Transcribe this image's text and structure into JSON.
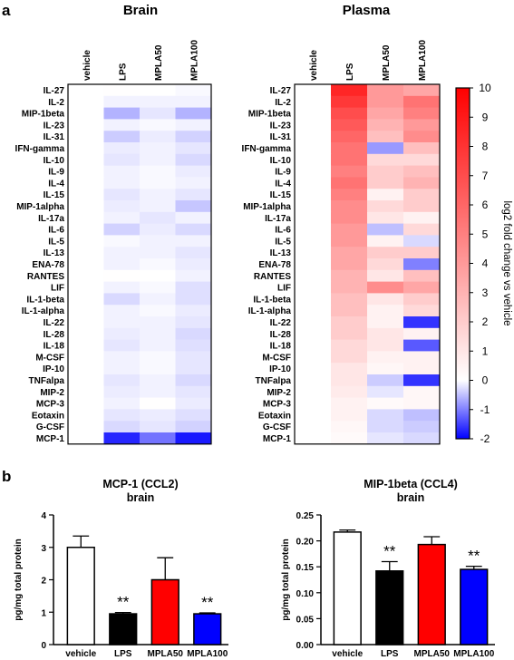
{
  "panel_a": {
    "label": "a"
  },
  "panel_b": {
    "label": "b"
  },
  "chart_data": [
    {
      "type": "heatmap",
      "title": "Brain",
      "columns": [
        "vehicle",
        "LPS",
        "MPLA50",
        "MPLA100"
      ],
      "rows": [
        "IL-27",
        "IL-2",
        "MIP-1beta",
        "IL-23",
        "IL-31",
        "IFN-gamma",
        "IL-10",
        "IL-9",
        "IL-4",
        "IL-15",
        "MIP-1alpha",
        "IL-17a",
        "IL-6",
        "IL-5",
        "IL-13",
        "ENA-78",
        "RANTES",
        "LIF",
        "IL-1-beta",
        "IL-1-alpha",
        "IL-22",
        "IL-28",
        "IL-18",
        "M-CSF",
        "IP-10",
        "TNFalpa",
        "MIP-2",
        "MCP-3",
        "Eotaxin",
        "G-CSF",
        "MCP-1"
      ],
      "values": [
        [
          0,
          0.05,
          0.0,
          -0.05
        ],
        [
          0,
          -0.1,
          -0.1,
          -0.1
        ],
        [
          0,
          -0.6,
          -0.2,
          -0.6
        ],
        [
          0,
          -0.1,
          -0.05,
          -0.1
        ],
        [
          0,
          -0.4,
          -0.15,
          -0.35
        ],
        [
          0,
          -0.15,
          -0.1,
          -0.2
        ],
        [
          0,
          -0.2,
          -0.1,
          -0.3
        ],
        [
          0,
          -0.1,
          -0.05,
          -0.15
        ],
        [
          0,
          -0.1,
          -0.05,
          -0.1
        ],
        [
          0,
          -0.2,
          -0.1,
          -0.2
        ],
        [
          0,
          -0.15,
          -0.1,
          -0.45
        ],
        [
          0,
          -0.1,
          -0.2,
          -0.1
        ],
        [
          0,
          -0.35,
          -0.15,
          -0.3
        ],
        [
          0,
          -0.05,
          -0.1,
          -0.1
        ],
        [
          0,
          -0.1,
          -0.1,
          -0.2
        ],
        [
          0,
          -0.1,
          -0.05,
          -0.15
        ],
        [
          0,
          0.05,
          0.0,
          -0.1
        ],
        [
          0,
          -0.1,
          -0.05,
          -0.25
        ],
        [
          0,
          -0.3,
          -0.1,
          -0.25
        ],
        [
          0,
          -0.1,
          -0.05,
          -0.15
        ],
        [
          0,
          -0.1,
          -0.1,
          -0.2
        ],
        [
          0,
          -0.15,
          -0.1,
          -0.3
        ],
        [
          0,
          -0.2,
          -0.1,
          -0.25
        ],
        [
          0,
          -0.1,
          -0.05,
          -0.2
        ],
        [
          0,
          -0.1,
          -0.05,
          -0.2
        ],
        [
          0,
          -0.2,
          -0.1,
          -0.3
        ],
        [
          0,
          -0.15,
          -0.1,
          -0.2
        ],
        [
          0,
          -0.1,
          0.05,
          -0.15
        ],
        [
          0,
          -0.2,
          -0.15,
          -0.25
        ],
        [
          0,
          -0.3,
          -0.2,
          -0.35
        ],
        [
          0,
          -1.7,
          -1.1,
          -1.8
        ]
      ]
    },
    {
      "type": "heatmap",
      "title": "Plasma",
      "columns": [
        "vehicle",
        "LPS",
        "MPLA50",
        "MPLA100"
      ],
      "rows": [
        "IL-27",
        "IL-2",
        "MIP-1beta",
        "IL-23",
        "IL-31",
        "IFN-gamma",
        "IL-10",
        "IL-9",
        "IL-4",
        "IL-15",
        "MIP-1alpha",
        "IL-17a",
        "IL-6",
        "IL-5",
        "IL-13",
        "ENA-78",
        "RANTES",
        "LIF",
        "IL-1-beta",
        "IL-1-alpha",
        "IL-22",
        "IL-28",
        "IL-18",
        "M-CSF",
        "IP-10",
        "TNFalpa",
        "MIP-2",
        "MCP-3",
        "Eotaxin",
        "G-CSF",
        "MCP-1"
      ],
      "values": [
        [
          0,
          8.5,
          4.0,
          3.5
        ],
        [
          0,
          7.8,
          4.0,
          5.5
        ],
        [
          0,
          7.0,
          3.5,
          5.0
        ],
        [
          0,
          6.5,
          3.0,
          4.0
        ],
        [
          0,
          6.0,
          2.5,
          4.5
        ],
        [
          0,
          5.5,
          -0.8,
          2.5
        ],
        [
          0,
          5.5,
          1.5,
          1.5
        ],
        [
          0,
          5.0,
          2.0,
          2.5
        ],
        [
          0,
          5.5,
          2.0,
          3.0
        ],
        [
          0,
          5.0,
          0.5,
          2.0
        ],
        [
          0,
          4.5,
          1.5,
          2.0
        ],
        [
          0,
          4.5,
          1.0,
          0.5
        ],
        [
          0,
          4.0,
          -0.5,
          1.5
        ],
        [
          0,
          4.0,
          0.5,
          -0.3
        ],
        [
          0,
          3.5,
          2.0,
          2.0
        ],
        [
          0,
          3.5,
          1.5,
          -1.0
        ],
        [
          0,
          3.0,
          1.0,
          2.5
        ],
        [
          0,
          3.0,
          4.5,
          3.5
        ],
        [
          0,
          2.5,
          1.0,
          2.0
        ],
        [
          0,
          2.5,
          0.5,
          1.5
        ],
        [
          0,
          2.0,
          0.5,
          -1.6
        ],
        [
          0,
          2.0,
          1.0,
          0.5
        ],
        [
          0,
          1.5,
          1.0,
          -1.3
        ],
        [
          0,
          1.5,
          0.5,
          0.5
        ],
        [
          0,
          1.0,
          0.3,
          0.5
        ],
        [
          0,
          1.0,
          -0.4,
          -1.6
        ],
        [
          0,
          0.8,
          -0.2,
          0.3
        ],
        [
          0,
          0.5,
          0.2,
          0.3
        ],
        [
          0,
          0.5,
          -0.3,
          -0.5
        ],
        [
          0,
          0.3,
          -0.3,
          -0.4
        ],
        [
          0,
          0.2,
          -0.2,
          -0.3
        ]
      ],
      "colorbar": {
        "range": [
          -2,
          10
        ],
        "ticks": [
          10,
          9,
          8,
          7,
          6,
          5,
          4,
          3,
          2,
          1,
          0,
          -1,
          -2
        ],
        "label": "log2 fold change vs vehicle"
      }
    },
    {
      "type": "bar",
      "title": "MCP-1 (CCL2)",
      "subtitle": "brain",
      "ylabel": "pg/mg total protein",
      "categories": [
        "vehicle",
        "LPS",
        "MPLA50",
        "MPLA100"
      ],
      "values": [
        3.0,
        0.95,
        2.0,
        0.95
      ],
      "errors": [
        0.35,
        0.04,
        0.68,
        0.03
      ],
      "annotations": [
        "",
        "**",
        "",
        "**"
      ],
      "colors": [
        "#ffffff",
        "#000000",
        "#ff0000",
        "#0000ff"
      ],
      "ylim": [
        0,
        4
      ],
      "yticks": [
        "0",
        "1",
        "2",
        "3",
        "4"
      ]
    },
    {
      "type": "bar",
      "title": "MIP-1beta (CCL4)",
      "subtitle": "brain",
      "ylabel": "pg/mg total protein",
      "categories": [
        "vehicle",
        "LPS",
        "MPLA50",
        "MPLA100"
      ],
      "values": [
        0.217,
        0.142,
        0.193,
        0.145
      ],
      "errors": [
        0.004,
        0.018,
        0.015,
        0.006
      ],
      "annotations": [
        "",
        "**",
        "",
        "**"
      ],
      "colors": [
        "#ffffff",
        "#000000",
        "#ff0000",
        "#0000ff"
      ],
      "ylim": [
        0,
        0.25
      ],
      "yticks": [
        "0.00",
        "0.05",
        "0.10",
        "0.15",
        "0.20",
        "0.25"
      ]
    }
  ]
}
